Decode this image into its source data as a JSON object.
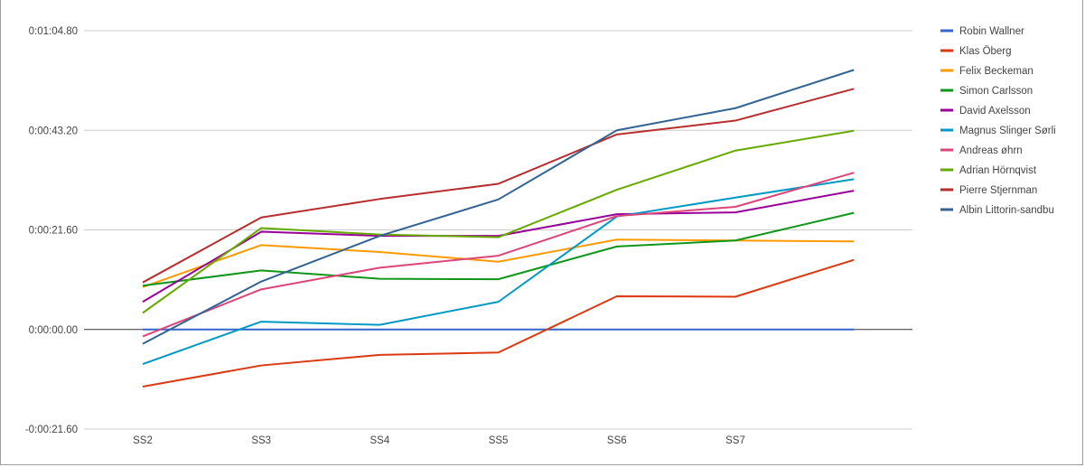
{
  "chart_data": {
    "type": "line",
    "categories": [
      "SS2",
      "SS3",
      "SS4",
      "SS5",
      "SS6",
      "SS7",
      ""
    ],
    "y_tick_labels": [
      "-0:00:21.60",
      "0:00:00.00",
      "0:00:21.60",
      "0:00:43.20",
      "0:01:04.80"
    ],
    "ylim_seconds": [
      -21.6,
      64.8
    ],
    "y_ticks_seconds": [
      -21.6,
      0,
      21.6,
      43.2,
      64.8
    ],
    "grid": true,
    "legend_position": "right",
    "series": [
      {
        "name": "Robin Wallner",
        "color": "#3366cc",
        "values": [
          0,
          0,
          0,
          0,
          0,
          0,
          0
        ]
      },
      {
        "name": "Klas Öberg",
        "color": "#dc3912",
        "values": [
          -12.4,
          -7.8,
          -5.5,
          -5.0,
          7.2,
          7.1,
          15.1
        ]
      },
      {
        "name": "Felix Beckeman",
        "color": "#ff9900",
        "values": [
          9.2,
          18.3,
          16.8,
          14.7,
          19.5,
          19.3,
          19.1
        ]
      },
      {
        "name": "Simon Carlsson",
        "color": "#109618",
        "values": [
          9.5,
          12.8,
          11.0,
          10.9,
          18.0,
          19.3,
          25.3
        ]
      },
      {
        "name": "David Axelsson",
        "color": "#990099",
        "values": [
          6.0,
          21.2,
          20.3,
          20.3,
          25.0,
          25.4,
          30.1
        ]
      },
      {
        "name": "Magnus Slinger Sørli",
        "color": "#0099c6",
        "values": [
          -7.5,
          1.7,
          1.0,
          6.0,
          24.5,
          28.6,
          32.6
        ]
      },
      {
        "name": "Andreas øhrn",
        "color": "#dd4477",
        "values": [
          -1.5,
          8.7,
          13.4,
          16.0,
          24.6,
          26.6,
          34.0
        ]
      },
      {
        "name": "Adrian Hörnqvist",
        "color": "#66aa00",
        "values": [
          3.6,
          22.0,
          20.6,
          20.0,
          30.3,
          38.8,
          43.1
        ]
      },
      {
        "name": "Pierre Stjernman",
        "color": "#b82e2e",
        "values": [
          10.2,
          24.3,
          28.3,
          31.6,
          42.3,
          45.3,
          52.2
        ]
      },
      {
        "name": "Albin Littorin-sandbu",
        "color": "#316395",
        "values": [
          -3.1,
          10.4,
          20.3,
          28.2,
          43.2,
          48.0,
          56.3
        ]
      }
    ]
  }
}
